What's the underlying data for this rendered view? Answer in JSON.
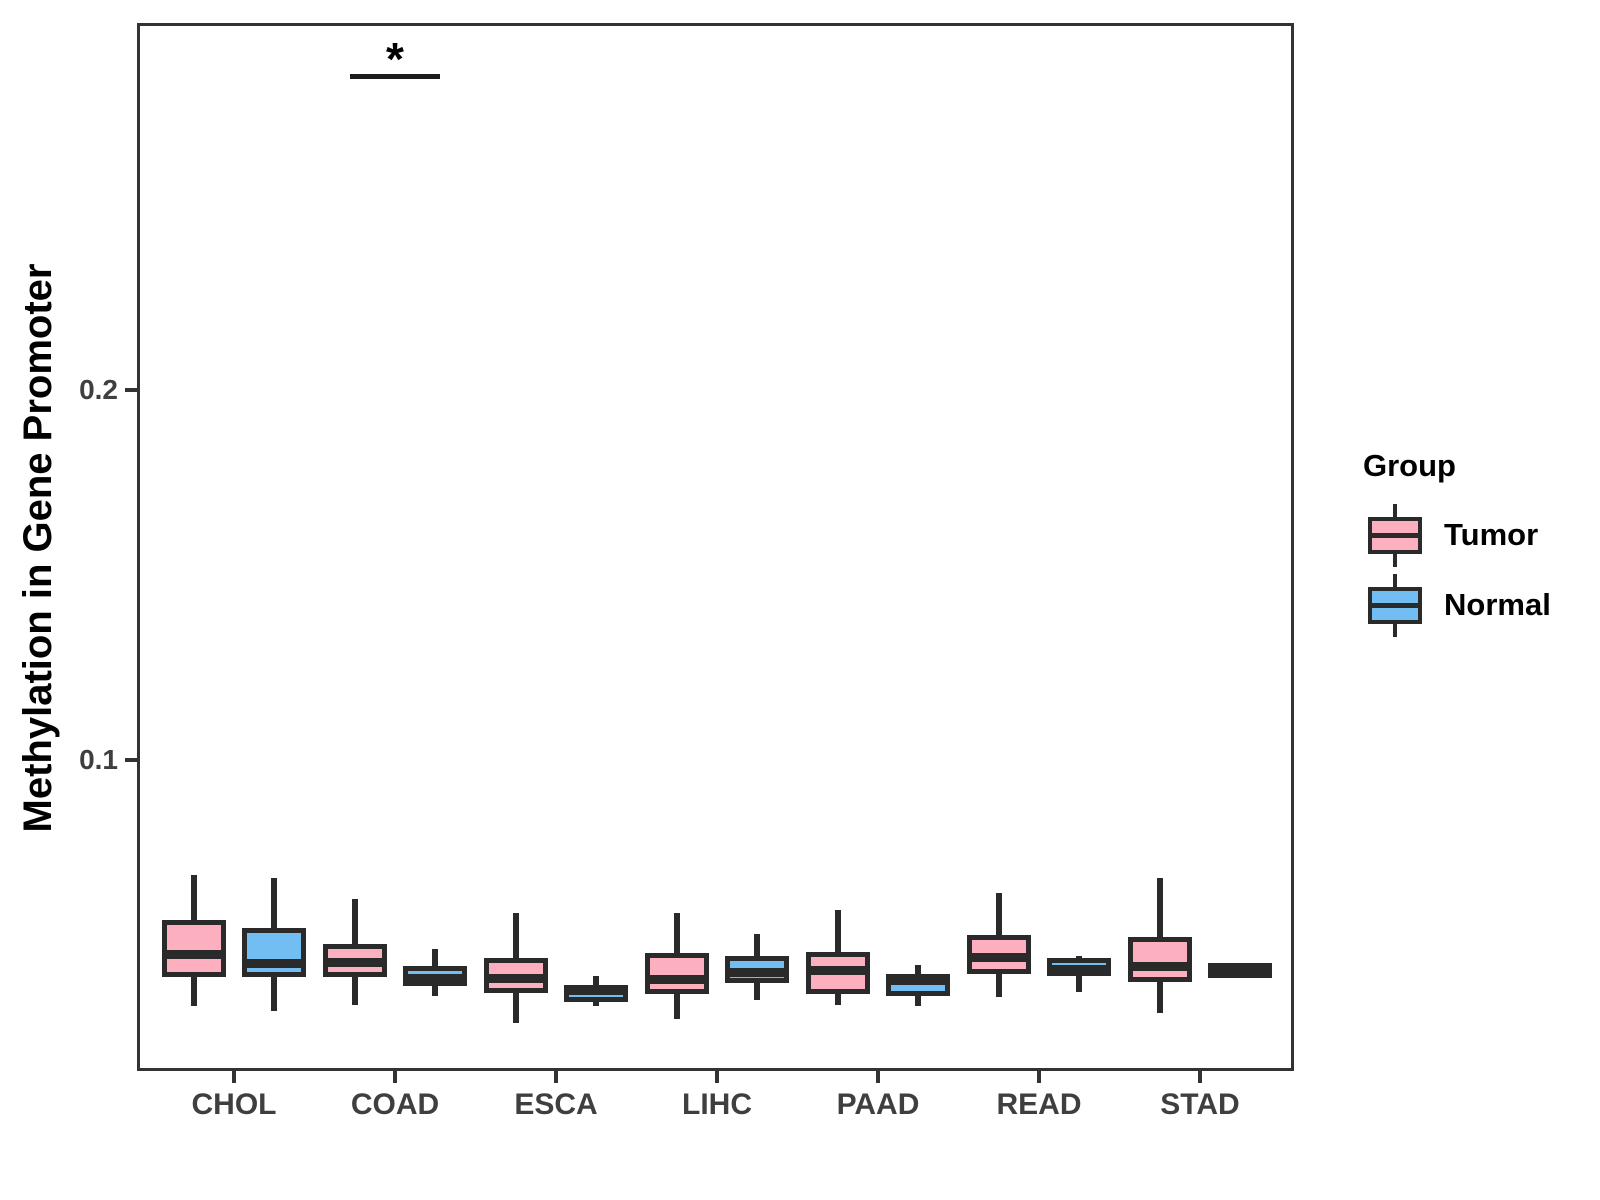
{
  "chart_data": {
    "type": "boxplot",
    "title": "",
    "ylabel": "Methylation in Gene Promoter",
    "xlabel": "",
    "categories": [
      "CHOL",
      "COAD",
      "ESCA",
      "LIHC",
      "PAAD",
      "READ",
      "STAD"
    ],
    "grid": false,
    "y_axis": {
      "ticks": [
        {
          "label": "0.2",
          "value": 0.2
        },
        {
          "label": "0.1",
          "value": 0.1
        }
      ],
      "range_approx": [
        0.016,
        0.3
      ]
    },
    "legend": {
      "title": "Group",
      "position": "right",
      "entries": [
        {
          "label": "Tumor",
          "color": "#FBAFBF"
        },
        {
          "label": "Normal",
          "color": "#72BDF2"
        }
      ]
    },
    "series": [
      {
        "name": "Tumor",
        "fill": "#FBAFBF",
        "boxes": [
          {
            "category": "CHOL",
            "whisker_low": 0.0335,
            "q1": 0.0414,
            "median": 0.0473,
            "q3": 0.0568,
            "whisker_high": 0.0689
          },
          {
            "category": "COAD",
            "whisker_low": 0.0338,
            "q1": 0.0414,
            "median": 0.0454,
            "q3": 0.0503,
            "whisker_high": 0.0624
          },
          {
            "category": "ESCA",
            "whisker_low": 0.0288,
            "q1": 0.0369,
            "median": 0.041,
            "q3": 0.0465,
            "whisker_high": 0.0586
          },
          {
            "category": "LIHC",
            "whisker_low": 0.03,
            "q1": 0.0368,
            "median": 0.0408,
            "q3": 0.0478,
            "whisker_high": 0.0586
          },
          {
            "category": "PAAD",
            "whisker_low": 0.0338,
            "q1": 0.0368,
            "median": 0.0432,
            "q3": 0.0481,
            "whisker_high": 0.0595
          },
          {
            "category": "READ",
            "whisker_low": 0.0359,
            "q1": 0.0422,
            "median": 0.0465,
            "q3": 0.0527,
            "whisker_high": 0.0641
          },
          {
            "category": "STAD",
            "whisker_low": 0.0316,
            "q1": 0.04,
            "median": 0.0443,
            "q3": 0.0522,
            "whisker_high": 0.0681
          }
        ]
      },
      {
        "name": "Normal",
        "fill": "#72BDF2",
        "boxes": [
          {
            "category": "CHOL",
            "whisker_low": 0.0322,
            "q1": 0.0414,
            "median": 0.0451,
            "q3": 0.0546,
            "whisker_high": 0.0681
          },
          {
            "category": "COAD",
            "whisker_low": 0.0362,
            "q1": 0.0389,
            "median": 0.041,
            "q3": 0.0443,
            "whisker_high": 0.0489
          },
          {
            "category": "ESCA",
            "whisker_low": 0.0335,
            "q1": 0.0346,
            "median": 0.0378,
            "q3": 0.0392,
            "whisker_high": 0.0416
          },
          {
            "category": "LIHC",
            "whisker_low": 0.0351,
            "q1": 0.0397,
            "median": 0.0427,
            "q3": 0.047,
            "whisker_high": 0.053
          },
          {
            "category": "PAAD",
            "whisker_low": 0.0335,
            "q1": 0.0362,
            "median": 0.0405,
            "q3": 0.0422,
            "whisker_high": 0.0445
          },
          {
            "category": "READ",
            "whisker_low": 0.0372,
            "q1": 0.0416,
            "median": 0.0435,
            "q3": 0.0465,
            "whisker_high": 0.047
          },
          {
            "category": "STAD",
            "whisker_low": 0.0438,
            "q1": 0.0438,
            "median": 0.0438,
            "q3": 0.0438,
            "whisker_high": 0.0438
          }
        ]
      }
    ],
    "annotation": {
      "text": "*",
      "category": "COAD",
      "line_y": 0.285,
      "spans": "Tumor vs Normal"
    },
    "colors": {
      "box_stroke": "#2A2A2A",
      "panel_border": "#333333",
      "tick_text": "#3F3F3F",
      "background": "#FFFFFF"
    }
  }
}
